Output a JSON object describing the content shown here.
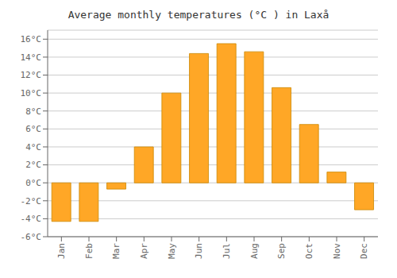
{
  "chart_data": {
    "type": "bar",
    "title": "Average monthly temperatures (°C ) in Laxå",
    "categories": [
      "Jan",
      "Feb",
      "Mar",
      "Apr",
      "May",
      "Jun",
      "Jul",
      "Aug",
      "Sep",
      "Oct",
      "Nov",
      "Dec"
    ],
    "values": [
      -4.3,
      -4.3,
      -0.7,
      4.0,
      10.0,
      14.4,
      15.5,
      14.6,
      10.6,
      6.5,
      1.2,
      -3.0
    ],
    "color": "#FFA726",
    "ylim": [
      -6,
      17
    ],
    "yticks": [
      {
        "value": -6,
        "label": "-6°C"
      },
      {
        "value": -4,
        "label": "-4°C"
      },
      {
        "value": -2,
        "label": "-2°C"
      },
      {
        "value": 0,
        "label": "0°C"
      },
      {
        "value": 2,
        "label": "2°C"
      },
      {
        "value": 4,
        "label": "4°C"
      },
      {
        "value": 6,
        "label": "6°C"
      },
      {
        "value": 8,
        "label": "8°C"
      },
      {
        "value": 10,
        "label": "10°C"
      },
      {
        "value": 12,
        "label": "12°C"
      },
      {
        "value": 14,
        "label": "14°C"
      },
      {
        "value": 16,
        "label": "16°C"
      }
    ],
    "grid": true
  }
}
